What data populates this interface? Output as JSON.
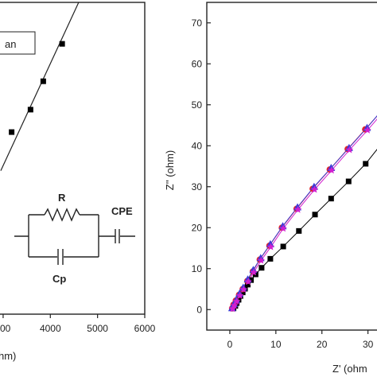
{
  "chart_data": [
    {
      "type": "line",
      "panel": "left",
      "xlabel": "hm)",
      "ylabel": "",
      "xticks": [
        "00",
        "4000",
        "5000",
        "6000"
      ],
      "xlim": [
        2900,
        6000
      ],
      "ylim": [
        0,
        100
      ],
      "grid": false,
      "legend": {
        "text": "an",
        "placement": "top-left"
      },
      "series": [
        {
          "marker": "square",
          "color": "#000000",
          "x": [
            3180,
            3580,
            3850,
            4250
          ],
          "y": [
            58.4,
            65.6,
            74.7,
            86.7
          ]
        }
      ],
      "fit_line": {
        "x": [
          2950,
          4600
        ],
        "y": [
          46,
          100
        ]
      },
      "inset_circuit": {
        "labels": [
          "R",
          "CPE",
          "Cp"
        ]
      }
    },
    {
      "type": "line",
      "panel": "right",
      "xlabel": "Z' (ohm",
      "ylabel": "Z'' (ohm)",
      "xticks": [
        0,
        10,
        20,
        30
      ],
      "yticks": [
        0,
        10,
        20,
        30,
        40,
        50,
        60,
        70
      ],
      "xlim": [
        -5,
        33
      ],
      "ylim": [
        -5,
        75
      ],
      "grid": false,
      "series": [
        {
          "marker": "square",
          "color": "#000000",
          "x": [
            0.8,
            1.2,
            1.5,
            1.9,
            2.3,
            2.8,
            3.3,
            3.9,
            4.6,
            5.6,
            6.9,
            8.8,
            11.6,
            15.0,
            18.5,
            22.0,
            25.8,
            29.5,
            32.6
          ],
          "y": [
            0.3,
            0.9,
            1.6,
            2.4,
            3.3,
            4.2,
            5.1,
            6.1,
            7.2,
            8.6,
            10.2,
            12.4,
            15.4,
            19.2,
            23.2,
            27.1,
            31.3,
            35.6,
            40.0
          ]
        },
        {
          "marker": "circle",
          "color": "#e0242b",
          "x": [
            0.5,
            0.8,
            1.3,
            2.0,
            2.8,
            3.8,
            5.0,
            6.5,
            8.6,
            11.3,
            14.5,
            18.0,
            21.7,
            25.6,
            29.4,
            33.2
          ],
          "y": [
            0.3,
            1.2,
            2.2,
            3.6,
            5.0,
            7.0,
            9.3,
            12.2,
            15.6,
            20.0,
            24.6,
            29.5,
            34.2,
            39.2,
            44.0,
            48.8
          ]
        },
        {
          "marker": "triangle",
          "color": "#3b3bd6",
          "x": [
            0.5,
            0.9,
            1.4,
            2.1,
            2.9,
            3.9,
            5.1,
            6.7,
            8.8,
            11.5,
            14.7,
            18.3,
            22.0,
            25.9,
            29.8,
            33.5
          ],
          "y": [
            0.4,
            1.4,
            2.4,
            3.9,
            5.4,
            7.4,
            9.7,
            12.6,
            16.0,
            20.4,
            25.0,
            30.0,
            34.6,
            39.5,
            44.4,
            49.3
          ]
        },
        {
          "marker": "star",
          "color": "#d21fd0",
          "x": [
            0.6,
            1.0,
            1.5,
            2.2,
            3.0,
            4.0,
            5.2,
            6.8,
            8.9,
            11.6,
            14.8,
            18.4,
            22.1,
            26.0,
            29.9,
            33.6
          ],
          "y": [
            0.2,
            1.0,
            2.0,
            3.4,
            4.9,
            6.8,
            9.1,
            12.0,
            15.3,
            19.8,
            24.4,
            29.3,
            34.0,
            39.0,
            43.8,
            48.6
          ]
        }
      ]
    }
  ]
}
